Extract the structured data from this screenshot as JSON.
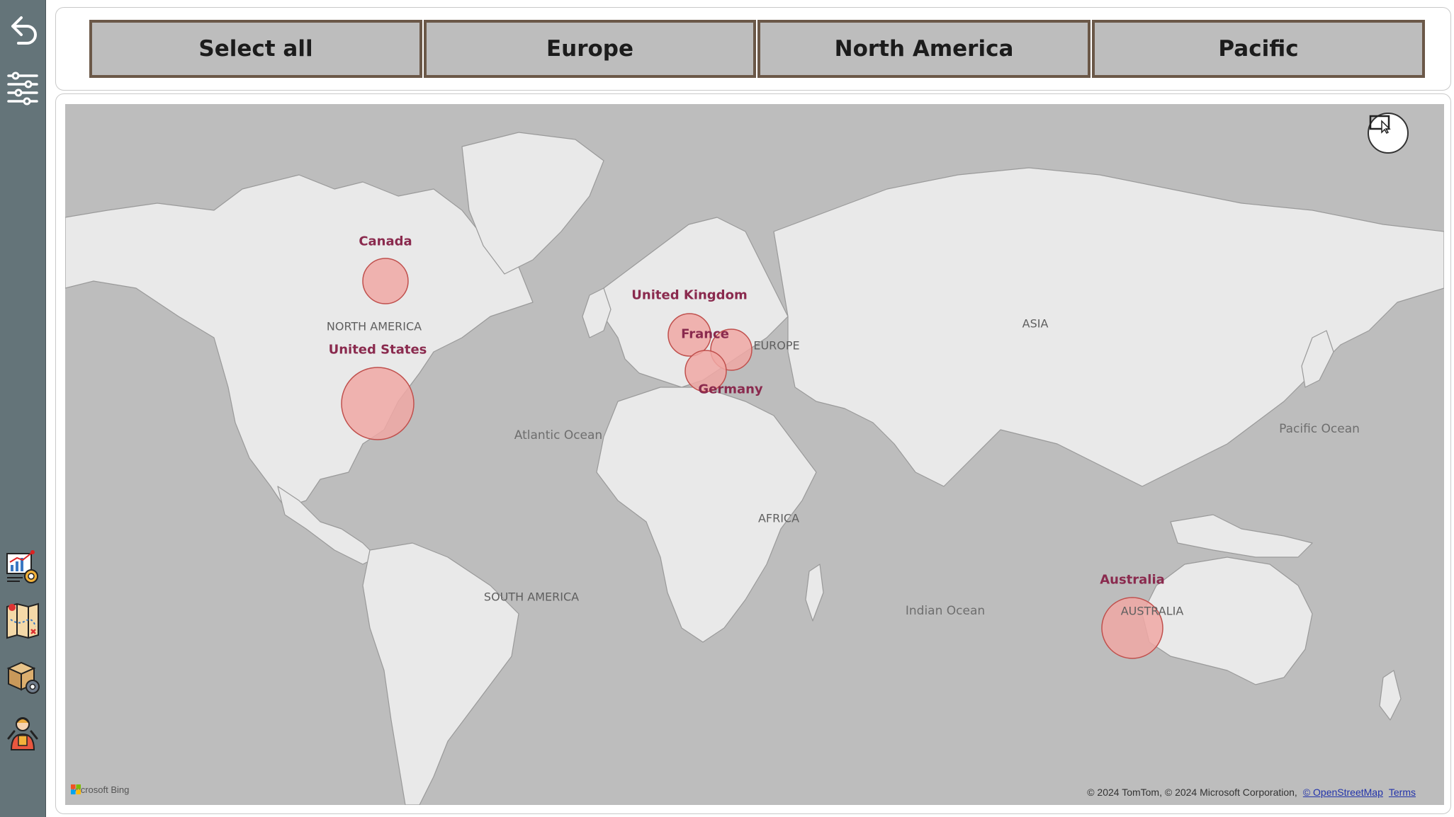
{
  "sidebar": {
    "items": [
      {
        "name": "back-arrow-icon"
      },
      {
        "name": "filter-sliders-icon"
      },
      {
        "name": "dashboard-chart-icon"
      },
      {
        "name": "map-icon"
      },
      {
        "name": "package-gear-icon"
      },
      {
        "name": "employee-icon"
      }
    ]
  },
  "slicer": {
    "buttons": [
      "Select all",
      "Europe",
      "North America",
      "Pacific"
    ]
  },
  "map": {
    "regions": [
      "NORTH AMERICA",
      "SOUTH AMERICA",
      "EUROPE",
      "AFRICA",
      "ASIA",
      "AUSTRALIA"
    ],
    "oceans": [
      "Atlantic Ocean",
      "Indian Ocean",
      "Pacific Ocean"
    ],
    "bubble_color": "#f0a8a4",
    "bubble_stroke": "#c0504d",
    "label_color": "#8a2a4e",
    "countries": [
      "Canada",
      "United States",
      "United Kingdom",
      "France",
      "Germany",
      "Australia"
    ],
    "provider": "Microsoft Bing",
    "copyright": "© 2024 TomTom, © 2024 Microsoft Corporation,",
    "osm_link": "© OpenStreetMap",
    "terms_link": "Terms"
  }
}
